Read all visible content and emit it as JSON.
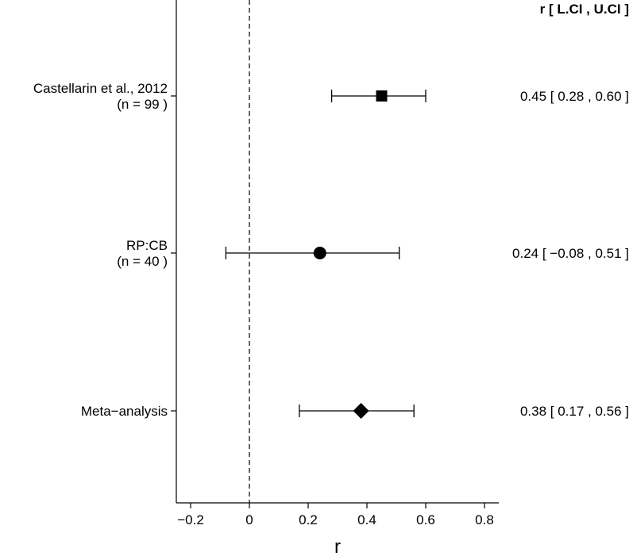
{
  "chart_data": {
    "type": "forest",
    "xlabel": "r",
    "xlim": [
      -0.25,
      0.85
    ],
    "x_ticks": [
      -0.2,
      0,
      0.2,
      0.4,
      0.6,
      0.8
    ],
    "x_tick_labels": [
      "−0.2",
      "0",
      "0.2",
      "0.4",
      "0.6",
      "0.8"
    ],
    "reference_line": 0,
    "reference_line_style": "dashed",
    "ci_header": "r [ L.CI , U.CI ]",
    "rows": [
      {
        "label_line1": "Castellarin et al., 2012",
        "label_line2": "(n = 99 )",
        "r": 0.45,
        "lower": 0.28,
        "upper": 0.6,
        "marker": "square",
        "ci_text": "0.45 [ 0.28 , 0.60 ]"
      },
      {
        "label_line1": "RP:CB",
        "label_line2": "(n = 40 )",
        "r": 0.24,
        "lower": -0.08,
        "upper": 0.51,
        "marker": "circle",
        "ci_text": "0.24 [ −0.08 , 0.51 ]"
      },
      {
        "label_line1": "Meta−analysis",
        "label_line2": "",
        "r": 0.38,
        "lower": 0.17,
        "upper": 0.56,
        "marker": "diamond",
        "ci_text": "0.38 [ 0.17 , 0.56 ]"
      }
    ],
    "grid": false
  }
}
